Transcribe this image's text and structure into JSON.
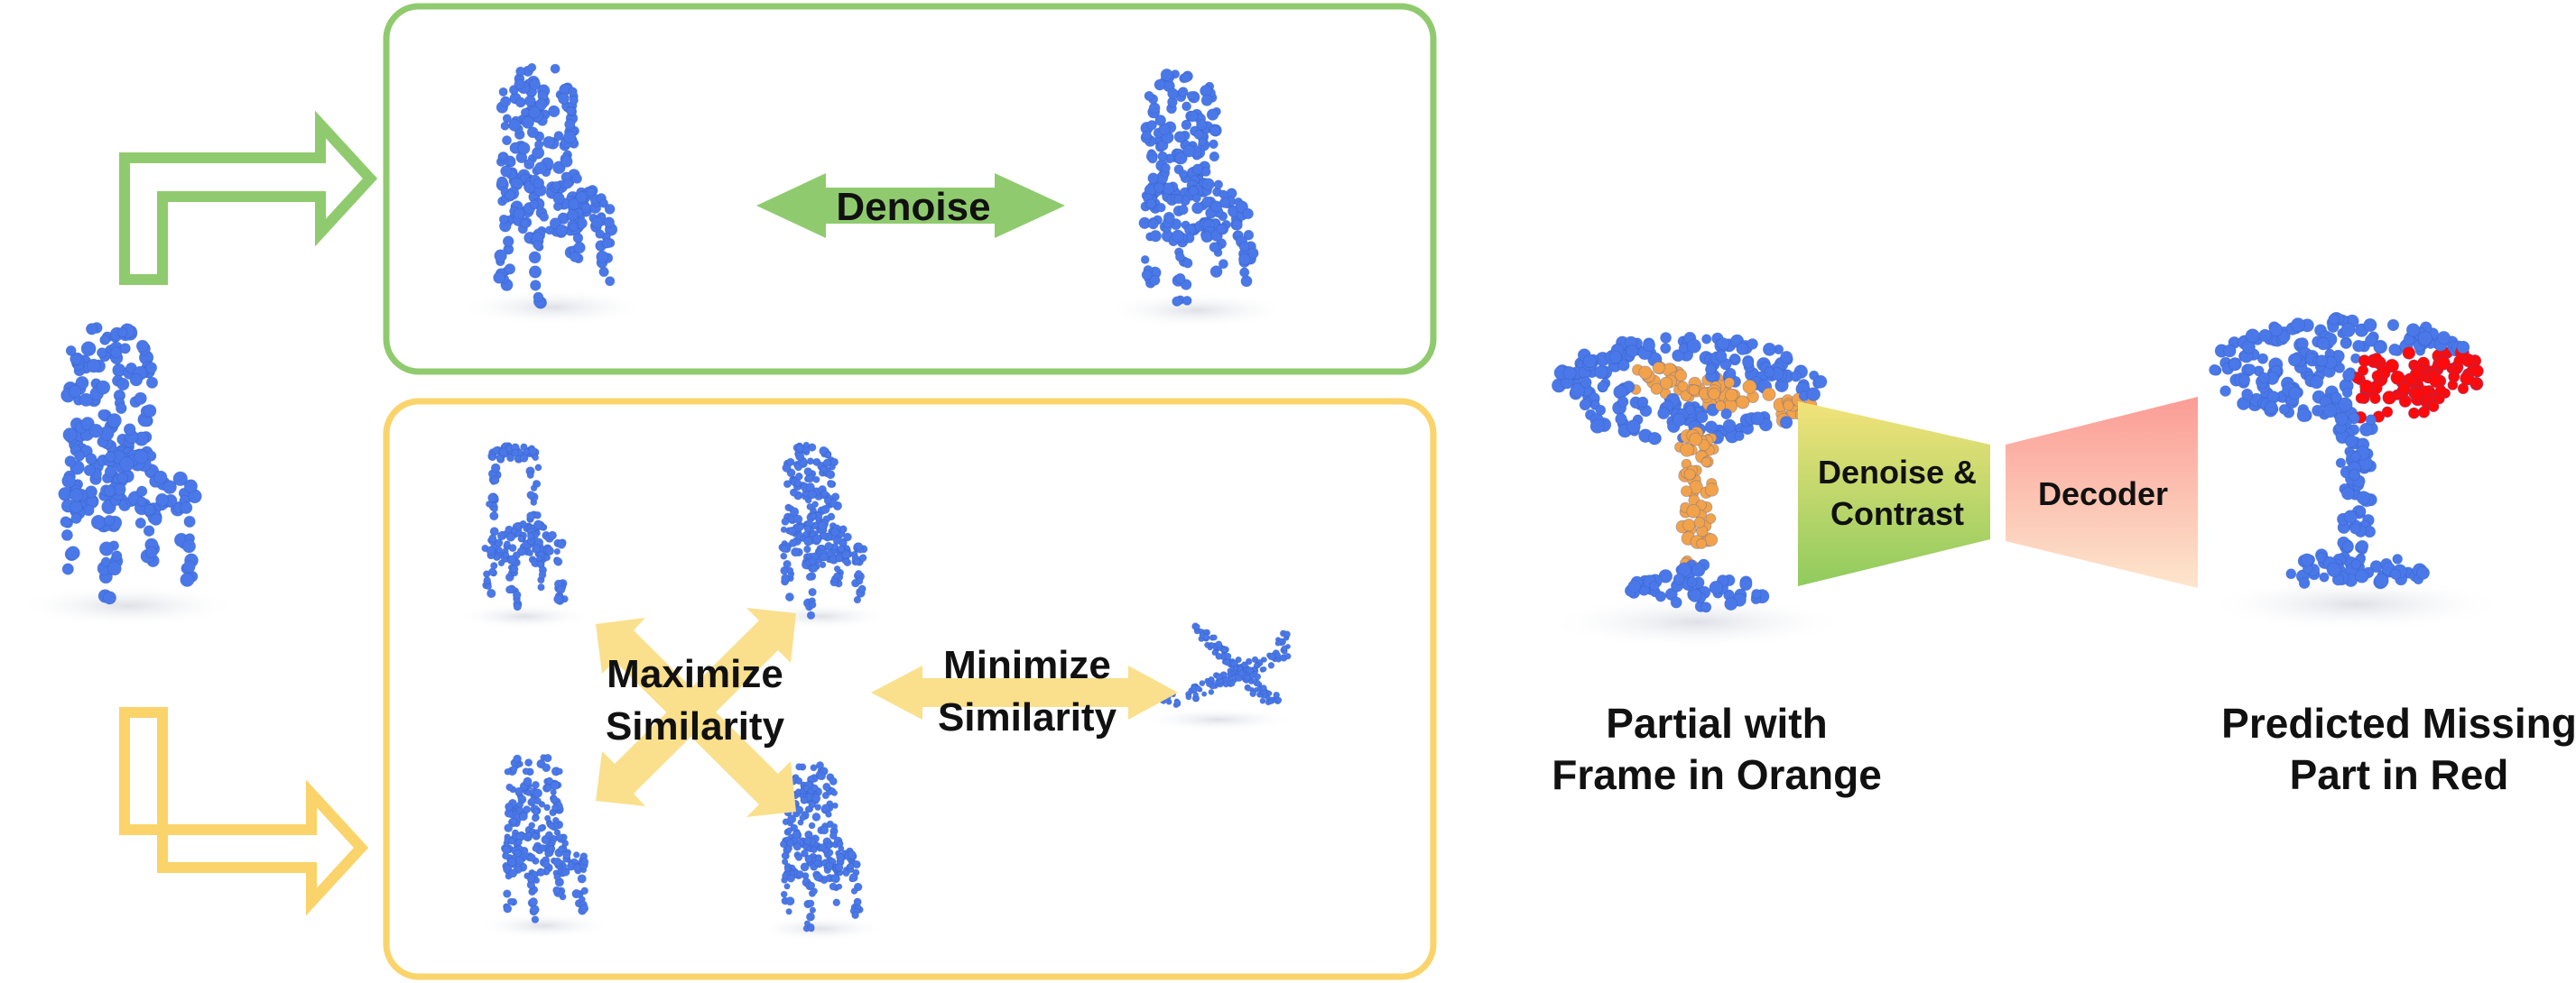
{
  "colors": {
    "green": "#8FCB6E",
    "yellow": "#FAD36A",
    "point_blue": "#4A78E8",
    "point_orange": "#F2A24A",
    "point_red": "#FF0A0A"
  },
  "icons": {
    "source": "chair-point-cloud-icon",
    "denoise_left": "chair-point-cloud-icon",
    "denoise_right": "chair-point-cloud-icon",
    "contrast": [
      "chair-point-cloud-icon",
      "chair-point-cloud-icon",
      "chair-point-cloud-icon",
      "chair-point-cloud-icon",
      "airplane-point-cloud-icon"
    ],
    "partial": "table-point-cloud-icon",
    "predicted": "table-point-cloud-icon"
  },
  "labels": {
    "denoise": "Denoise",
    "maximize": [
      "Maximize",
      "Similarity"
    ],
    "minimize": [
      "Minimize",
      "Similarity"
    ],
    "encoder": [
      "Denoise &",
      "Contrast"
    ],
    "decoder": "Decoder",
    "partial_caption": [
      "Partial with",
      "Frame in Orange"
    ],
    "predicted_caption": [
      "Predicted Missing",
      "Part in Red"
    ]
  }
}
